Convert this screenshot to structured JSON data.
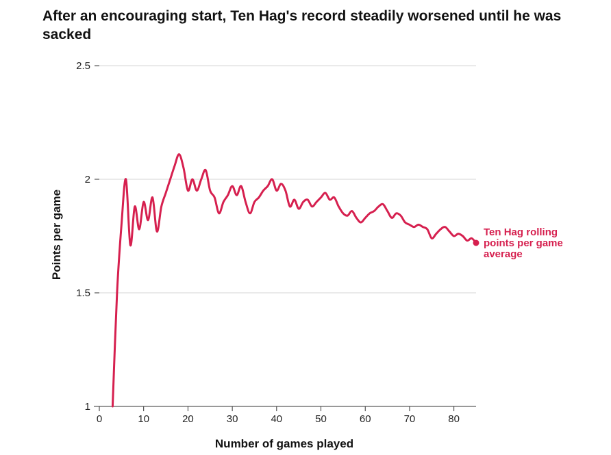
{
  "chart_data": {
    "type": "line",
    "title": "After an encouraging start, Ten Hag's record steadily worsened until he was sacked",
    "xlabel": "Number of games played",
    "ylabel": "Points per game",
    "xlim": [
      -2,
      85
    ],
    "ylim": [
      1,
      2.5
    ],
    "x_ticks": [
      0,
      10,
      20,
      30,
      40,
      50,
      60,
      70,
      80
    ],
    "x_tick_labels": [
      "0",
      "10",
      "20",
      "30",
      "40",
      "50",
      "60",
      "70",
      "80"
    ],
    "y_ticks": [
      1,
      1.5,
      2,
      2.5
    ],
    "y_tick_labels": [
      "1",
      "1.5",
      "2",
      "2.5"
    ],
    "grid": true,
    "colors": {
      "series": "#d6204f",
      "grid": "#d6d6d6",
      "axis": "#333333",
      "text": "#121212"
    },
    "series": [
      {
        "name": "Ten Hag rolling points per game average",
        "label_lines": [
          "Ten Hag rolling",
          "points per game",
          "average"
        ],
        "x": [
          3,
          4,
          5,
          6,
          7,
          8,
          9,
          10,
          11,
          12,
          13,
          14,
          15,
          16,
          17,
          18,
          19,
          20,
          21,
          22,
          23,
          24,
          25,
          26,
          27,
          28,
          29,
          30,
          31,
          32,
          33,
          34,
          35,
          36,
          37,
          38,
          39,
          40,
          41,
          42,
          43,
          44,
          45,
          46,
          47,
          48,
          49,
          50,
          51,
          52,
          53,
          54,
          55,
          56,
          57,
          58,
          59,
          60,
          61,
          62,
          63,
          64,
          65,
          66,
          67,
          68,
          69,
          70,
          71,
          72,
          73,
          74,
          75,
          76,
          77,
          78,
          79,
          80,
          81,
          82,
          83,
          84,
          85
        ],
        "y": [
          1.0,
          1.5,
          1.8,
          2.0,
          1.71,
          1.88,
          1.78,
          1.9,
          1.82,
          1.92,
          1.77,
          1.88,
          1.94,
          2.0,
          2.06,
          2.11,
          2.05,
          1.95,
          2.0,
          1.95,
          2.0,
          2.04,
          1.95,
          1.92,
          1.85,
          1.9,
          1.93,
          1.97,
          1.93,
          1.97,
          1.9,
          1.85,
          1.9,
          1.92,
          1.95,
          1.97,
          2.0,
          1.95,
          1.98,
          1.95,
          1.88,
          1.91,
          1.87,
          1.9,
          1.91,
          1.88,
          1.9,
          1.92,
          1.94,
          1.91,
          1.92,
          1.88,
          1.85,
          1.84,
          1.86,
          1.83,
          1.81,
          1.83,
          1.85,
          1.86,
          1.88,
          1.89,
          1.86,
          1.83,
          1.85,
          1.84,
          1.81,
          1.8,
          1.79,
          1.8,
          1.79,
          1.78,
          1.74,
          1.76,
          1.78,
          1.79,
          1.77,
          1.75,
          1.76,
          1.75,
          1.73,
          1.74,
          1.72
        ]
      }
    ]
  }
}
